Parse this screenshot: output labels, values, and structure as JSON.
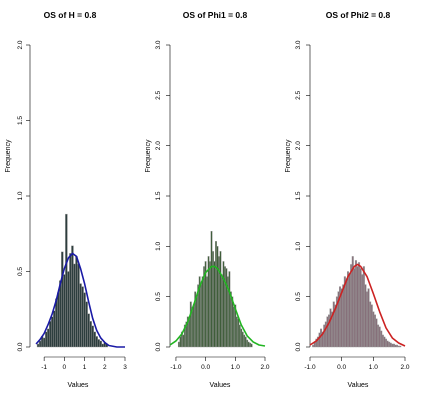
{
  "chart_data": [
    {
      "type": "bar",
      "title": "OS of H = 0.8",
      "xlabel": "Values",
      "ylabel": "Frequency",
      "xlim": [
        -1.7,
        3.0
      ],
      "ylim": [
        0,
        2.0
      ],
      "xticks": [
        -1,
        0,
        1,
        2,
        3
      ],
      "xtick_labels": [
        "-1",
        "0",
        "1",
        "2",
        "3"
      ],
      "yticks": [
        0,
        0.5,
        1.0,
        1.5,
        2.0
      ],
      "ytick_labels": [
        "0.0",
        "0.5",
        "1.0",
        "1.5",
        "2.0"
      ],
      "bin_width": 0.1,
      "bar_fill": "#2d3e3e",
      "curve_color": "#1a1aa6",
      "bins_x": [
        -1.3,
        -1.2,
        -1.1,
        -1.0,
        -0.9,
        -0.8,
        -0.7,
        -0.6,
        -0.5,
        -0.4,
        -0.3,
        -0.2,
        -0.1,
        0.0,
        0.1,
        0.2,
        0.3,
        0.4,
        0.5,
        0.6,
        0.7,
        0.8,
        0.9,
        1.0,
        1.1,
        1.2,
        1.3,
        1.4,
        1.5,
        1.6,
        1.7,
        1.8,
        1.9,
        2.0,
        2.1
      ],
      "density": [
        0.02,
        0.04,
        0.07,
        0.06,
        0.1,
        0.12,
        0.17,
        0.2,
        0.24,
        0.32,
        0.36,
        0.44,
        0.63,
        0.48,
        0.88,
        0.5,
        0.62,
        0.67,
        0.55,
        0.6,
        0.55,
        0.42,
        0.4,
        0.36,
        0.3,
        0.22,
        0.17,
        0.14,
        0.1,
        0.07,
        0.05,
        0.04,
        0.02,
        0.03,
        0.02
      ],
      "curve_x": [
        -1.4,
        -1.2,
        -1.0,
        -0.8,
        -0.6,
        -0.4,
        -0.2,
        0.0,
        0.2,
        0.4,
        0.6,
        0.8,
        1.0,
        1.2,
        1.4,
        1.6,
        1.8,
        2.0,
        2.2,
        2.6,
        3.0
      ],
      "curve_y": [
        0.02,
        0.05,
        0.09,
        0.15,
        0.22,
        0.31,
        0.42,
        0.52,
        0.59,
        0.62,
        0.6,
        0.52,
        0.42,
        0.3,
        0.19,
        0.11,
        0.06,
        0.03,
        0.01,
        0.0,
        0.0
      ]
    },
    {
      "type": "bar",
      "title": "OS of Phi1 = 0.8",
      "xlabel": "Values",
      "ylabel": "Frequency",
      "xlim": [
        -1.2,
        2.0
      ],
      "ylim": [
        0,
        3.0
      ],
      "xticks": [
        -1.0,
        0.0,
        1.0,
        2.0
      ],
      "xtick_labels": [
        "-1.0",
        "0.0",
        "1.0",
        "2.0"
      ],
      "yticks": [
        0,
        0.5,
        1.0,
        1.5,
        2.0,
        2.5,
        3.0
      ],
      "ytick_labels": [
        "0.0",
        "0.5",
        "1.0",
        "1.5",
        "2.0",
        "2.5",
        "3.0"
      ],
      "bin_width": 0.05,
      "bar_fill": "#3f5d3a",
      "curve_color": "#22b522",
      "bins_x": [
        -0.9,
        -0.85,
        -0.8,
        -0.75,
        -0.7,
        -0.65,
        -0.6,
        -0.55,
        -0.5,
        -0.45,
        -0.4,
        -0.35,
        -0.3,
        -0.25,
        -0.2,
        -0.15,
        -0.1,
        -0.05,
        0.0,
        0.05,
        0.1,
        0.15,
        0.2,
        0.25,
        0.3,
        0.35,
        0.4,
        0.45,
        0.5,
        0.55,
        0.6,
        0.65,
        0.7,
        0.75,
        0.8,
        0.85,
        0.9,
        0.95,
        1.0,
        1.05,
        1.1,
        1.15,
        1.2,
        1.25,
        1.3,
        1.35,
        1.4,
        1.45,
        1.5,
        1.55
      ],
      "density": [
        0.05,
        0.1,
        0.15,
        0.12,
        0.22,
        0.25,
        0.3,
        0.3,
        0.45,
        0.4,
        0.42,
        0.55,
        0.5,
        0.62,
        0.7,
        0.65,
        0.7,
        0.8,
        0.85,
        0.7,
        0.9,
        0.85,
        1.15,
        0.95,
        0.85,
        1.05,
        1.0,
        0.9,
        0.95,
        0.72,
        0.85,
        0.8,
        0.78,
        0.7,
        0.75,
        0.55,
        0.5,
        0.4,
        0.42,
        0.3,
        0.28,
        0.22,
        0.18,
        0.15,
        0.12,
        0.1,
        0.07,
        0.05,
        0.04,
        0.03
      ],
      "curve_x": [
        -1.2,
        -1.0,
        -0.8,
        -0.6,
        -0.4,
        -0.2,
        0.0,
        0.2,
        0.3,
        0.4,
        0.6,
        0.8,
        1.0,
        1.2,
        1.4,
        1.6,
        1.8,
        2.0
      ],
      "curve_y": [
        0.02,
        0.06,
        0.13,
        0.25,
        0.42,
        0.6,
        0.74,
        0.8,
        0.8,
        0.78,
        0.68,
        0.55,
        0.38,
        0.22,
        0.11,
        0.05,
        0.02,
        0.01
      ]
    },
    {
      "type": "bar",
      "title": "OS of Phi2 = 0.8",
      "xlabel": "Values",
      "ylabel": "Frequency",
      "xlim": [
        -1.0,
        2.0
      ],
      "ylim": [
        0,
        3.0
      ],
      "xticks": [
        -1.0,
        0.0,
        1.0,
        2.0
      ],
      "xtick_labels": [
        "-1.0",
        "0.0",
        "1.0",
        "2.0"
      ],
      "yticks": [
        0,
        0.5,
        1.0,
        1.5,
        2.0,
        2.5,
        3.0
      ],
      "ytick_labels": [
        "0.0",
        "0.5",
        "1.0",
        "1.5",
        "2.0",
        "2.5",
        "3.0"
      ],
      "bin_width": 0.05,
      "bar_fill": "#86707a",
      "curve_color": "#cc2222",
      "bins_x": [
        -0.9,
        -0.85,
        -0.8,
        -0.75,
        -0.7,
        -0.65,
        -0.6,
        -0.55,
        -0.5,
        -0.45,
        -0.4,
        -0.35,
        -0.3,
        -0.25,
        -0.2,
        -0.15,
        -0.1,
        -0.05,
        0.0,
        0.05,
        0.1,
        0.15,
        0.2,
        0.25,
        0.3,
        0.35,
        0.4,
        0.45,
        0.5,
        0.55,
        0.6,
        0.65,
        0.7,
        0.75,
        0.8,
        0.85,
        0.9,
        0.95,
        1.0,
        1.05,
        1.1,
        1.15,
        1.2,
        1.25,
        1.3,
        1.35,
        1.4,
        1.45,
        1.5,
        1.55,
        1.6,
        1.65,
        1.7,
        1.75,
        1.8,
        1.85
      ],
      "density": [
        0.02,
        0.05,
        0.08,
        0.1,
        0.14,
        0.18,
        0.15,
        0.22,
        0.25,
        0.3,
        0.32,
        0.38,
        0.35,
        0.45,
        0.42,
        0.5,
        0.55,
        0.6,
        0.58,
        0.62,
        0.7,
        0.68,
        0.75,
        0.72,
        0.82,
        0.9,
        0.78,
        0.86,
        0.8,
        0.84,
        0.78,
        0.72,
        0.8,
        0.62,
        0.55,
        0.58,
        0.45,
        0.42,
        0.35,
        0.32,
        0.28,
        0.22,
        0.2,
        0.16,
        0.12,
        0.1,
        0.08,
        0.06,
        0.05,
        0.04,
        0.03,
        0.03,
        0.02,
        0.02,
        0.01,
        0.01
      ],
      "curve_x": [
        -1.0,
        -0.8,
        -0.6,
        -0.4,
        -0.2,
        0.0,
        0.2,
        0.4,
        0.5,
        0.6,
        0.8,
        1.0,
        1.2,
        1.4,
        1.6,
        1.8,
        2.0
      ],
      "curve_y": [
        0.02,
        0.06,
        0.13,
        0.24,
        0.38,
        0.54,
        0.7,
        0.8,
        0.82,
        0.8,
        0.7,
        0.53,
        0.35,
        0.19,
        0.09,
        0.04,
        0.01
      ]
    }
  ]
}
